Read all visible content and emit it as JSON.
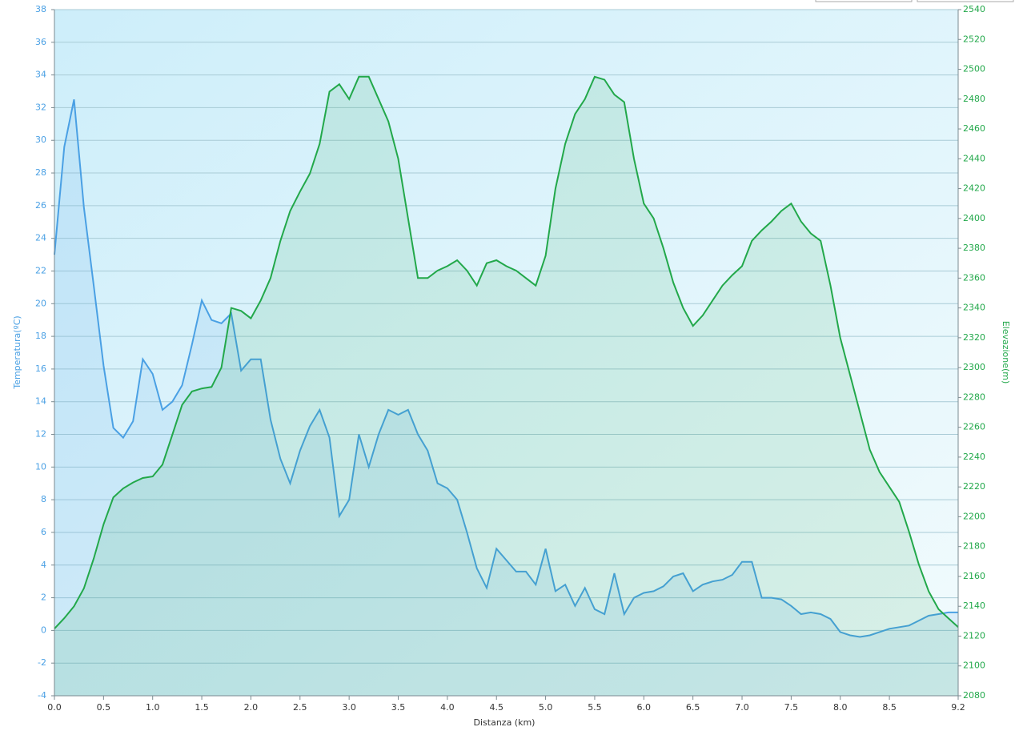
{
  "chart_data": {
    "type": "line",
    "xlabel": "Distanza  (km)",
    "ylabel": "Temperatura(ºC)",
    "y2label": "Elevazione(m)",
    "x": [
      0.0,
      0.1,
      0.2,
      0.3,
      0.4,
      0.5,
      0.6,
      0.7,
      0.8,
      0.9,
      1.0,
      1.1,
      1.2,
      1.3,
      1.4,
      1.5,
      1.6,
      1.7,
      1.8,
      1.9,
      2.0,
      2.1,
      2.2,
      2.3,
      2.4,
      2.5,
      2.6,
      2.7,
      2.8,
      2.9,
      3.0,
      3.1,
      3.2,
      3.3,
      3.4,
      3.5,
      3.6,
      3.7,
      3.8,
      3.9,
      4.0,
      4.1,
      4.2,
      4.3,
      4.4,
      4.5,
      4.6,
      4.7,
      4.8,
      4.9,
      5.0,
      5.1,
      5.2,
      5.3,
      5.4,
      5.5,
      5.6,
      5.7,
      5.8,
      5.9,
      6.0,
      6.1,
      6.2,
      6.3,
      6.4,
      6.5,
      6.6,
      6.7,
      6.8,
      6.9,
      7.0,
      7.1,
      7.2,
      7.3,
      7.4,
      7.5,
      7.6,
      7.7,
      7.8,
      7.9,
      8.0,
      8.1,
      8.2,
      8.3,
      8.4,
      8.5,
      8.6,
      8.7,
      8.8,
      8.9,
      9.0,
      9.1,
      9.2
    ],
    "series": [
      {
        "name": "Temperatura(ºC)",
        "color": "#4aa0e4",
        "axis": "y",
        "values": [
          23.0,
          29.6,
          32.5,
          25.9,
          21.1,
          16.2,
          12.4,
          11.8,
          12.8,
          16.6,
          15.7,
          13.5,
          14.0,
          15.0,
          17.5,
          20.2,
          19.0,
          18.8,
          19.4,
          15.9,
          16.6,
          16.6,
          12.9,
          10.5,
          9.0,
          11.0,
          12.5,
          13.5,
          11.8,
          7.0,
          8.0,
          12.0,
          10.0,
          12.0,
          13.5,
          13.2,
          13.5,
          12.0,
          11.0,
          9.0,
          8.7,
          8.0,
          6.0,
          3.8,
          2.6,
          5.0,
          4.3,
          3.6,
          3.6,
          2.8,
          5.0,
          2.4,
          2.8,
          1.5,
          2.6,
          1.3,
          1.0,
          3.5,
          1.0,
          2.0,
          2.3,
          2.4,
          2.7,
          3.3,
          3.5,
          2.4,
          2.8,
          3.0,
          3.1,
          3.4,
          4.2,
          4.2,
          2.0,
          2.0,
          1.9,
          1.5,
          1.0,
          1.1,
          1.0,
          0.7,
          -0.1,
          -0.3,
          -0.4,
          -0.3,
          -0.1,
          0.1,
          0.2,
          0.3,
          0.6,
          0.9,
          1.0,
          1.1,
          1.1
        ]
      },
      {
        "name": "Elevazione(m)",
        "color": "#22a84a",
        "axis": "y2",
        "values": [
          2125,
          2132,
          2140,
          2152,
          2172,
          2195,
          2213,
          2219,
          2223,
          2226,
          2227,
          2235,
          2255,
          2275,
          2284,
          2286,
          2287,
          2300,
          2340,
          2338,
          2333,
          2345,
          2360,
          2385,
          2405,
          2418,
          2430,
          2450,
          2485,
          2490,
          2480,
          2495,
          2495,
          2480,
          2465,
          2440,
          2400,
          2360,
          2360,
          2365,
          2368,
          2372,
          2365,
          2355,
          2370,
          2372,
          2368,
          2365,
          2360,
          2355,
          2375,
          2420,
          2450,
          2470,
          2480,
          2495,
          2493,
          2483,
          2478,
          2440,
          2410,
          2400,
          2380,
          2357,
          2340,
          2328,
          2335,
          2345,
          2355,
          2362,
          2368,
          2385,
          2392,
          2398,
          2405,
          2410,
          2398,
          2390,
          2385,
          2355,
          2320,
          2295,
          2270,
          2245,
          2230,
          2220,
          2210,
          2190,
          2168,
          2150,
          2138,
          2132,
          2126
        ]
      }
    ],
    "xlim": [
      0,
      9.2
    ],
    "xticks": [
      {
        "value": 0,
        "label": "0.0"
      },
      0.5,
      {
        "value": 1,
        "label": "1.0"
      },
      1.5,
      {
        "value": 2,
        "label": "2.0"
      },
      2.5,
      {
        "value": 3,
        "label": "3.0"
      },
      3.5,
      {
        "value": 4,
        "label": "4.0"
      },
      4.5,
      {
        "value": 5,
        "label": "5.0"
      },
      5.5,
      {
        "value": 6,
        "label": "6.0"
      },
      6.5,
      {
        "value": 7,
        "label": "7.0"
      },
      7.5,
      {
        "value": 8,
        "label": "8.0"
      },
      8.5,
      9.2
    ],
    "ylim": [
      -4,
      38
    ],
    "yticks": [
      -4,
      -2,
      0,
      2,
      4,
      6,
      8,
      10,
      12,
      14,
      16,
      18,
      20,
      22,
      24,
      26,
      28,
      30,
      32,
      34,
      36,
      38
    ],
    "y2lim": [
      2080,
      2540
    ],
    "y2ticks": [
      2080,
      2100,
      2120,
      2140,
      2160,
      2180,
      2200,
      2220,
      2240,
      2260,
      2280,
      2300,
      2320,
      2340,
      2360,
      2380,
      2400,
      2420,
      2440,
      2460,
      2480,
      2500,
      2520,
      2540
    ],
    "grid": true
  }
}
